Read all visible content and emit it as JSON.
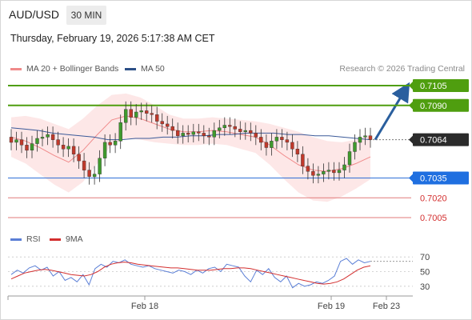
{
  "header": {
    "symbol": "AUD/USD",
    "timeframe": "30 MIN"
  },
  "timestamp": "Thursday, February 19, 2026 5:17:38 AM CET",
  "legend": {
    "bollinger": "MA 20 + Bollinger Bands",
    "ma50": "MA 50",
    "credit": "Research © 2026 Trading Central"
  },
  "indicator_legend": {
    "rsi": "RSI",
    "ma": "9MA"
  },
  "colors": {
    "resistance": "#4f9e0f",
    "support": "#2f6fd6",
    "pivot_line": "#e25c5c",
    "current": "#333333",
    "arrow": "#2a5f9e",
    "bull": "#3f9a2d",
    "bear": "#c0392b"
  },
  "chart_data": [
    {
      "type": "candlestick",
      "title": "AUD/USD",
      "timeframe": "30 MIN",
      "y_levels": [
        {
          "label": "0.7105",
          "value": 0.7105,
          "kind": "resistance"
        },
        {
          "label": "0.7090",
          "value": 0.709,
          "kind": "resistance"
        },
        {
          "label": "0.7064",
          "value": 0.7064,
          "kind": "current"
        },
        {
          "label": "0.7035",
          "value": 0.7035,
          "kind": "support"
        },
        {
          "label": "0.7020",
          "value": 0.702,
          "kind": "pivot"
        },
        {
          "label": "0.7005",
          "value": 0.7005,
          "kind": "pivot"
        }
      ],
      "x_labels": [
        "Feb 18",
        "Feb 19",
        "Feb 23"
      ],
      "close_series": [
        0.7062,
        0.7064,
        0.706,
        0.7056,
        0.7061,
        0.7065,
        0.7066,
        0.7068,
        0.7064,
        0.706,
        0.7057,
        0.7059,
        0.7053,
        0.7048,
        0.7041,
        0.7036,
        0.7038,
        0.705,
        0.7062,
        0.706,
        0.7063,
        0.7077,
        0.7087,
        0.7081,
        0.7085,
        0.7086,
        0.7084,
        0.7083,
        0.7078,
        0.7076,
        0.7074,
        0.7071,
        0.7067,
        0.7069,
        0.7068,
        0.707,
        0.7069,
        0.7067,
        0.7066,
        0.7071,
        0.7073,
        0.7075,
        0.7074,
        0.7072,
        0.707,
        0.7071,
        0.7069,
        0.7066,
        0.7062,
        0.7058,
        0.7063,
        0.7066,
        0.7064,
        0.7062,
        0.7057,
        0.7053,
        0.7044,
        0.704,
        0.7037,
        0.7038,
        0.704,
        0.7041,
        0.7039,
        0.7041,
        0.7045,
        0.7055,
        0.7062,
        0.7066,
        0.7067,
        0.7064
      ],
      "ma50_series": [
        0.7073,
        0.7072,
        0.7071,
        0.7069,
        0.7068,
        0.7067,
        0.7066,
        0.7064,
        0.7064,
        0.7065,
        0.7065,
        0.7066,
        0.7066,
        0.7067,
        0.7067,
        0.7068,
        0.7068,
        0.7069,
        0.7069,
        0.7069,
        0.7068,
        0.7068,
        0.7067,
        0.7067,
        0.7066,
        0.7065,
        0.7064
      ],
      "bollinger_mid_series": [
        0.7066,
        0.7063,
        0.7058,
        0.7052,
        0.7047,
        0.7056,
        0.7068,
        0.7079,
        0.7082,
        0.708,
        0.7076,
        0.7072,
        0.707,
        0.707,
        0.7071,
        0.707,
        0.7068,
        0.7066,
        0.706,
        0.7052,
        0.7045,
        0.7041,
        0.704,
        0.7042,
        0.7046,
        0.7051
      ],
      "bollinger_upper_series": [
        0.7081,
        0.7082,
        0.708,
        0.7076,
        0.7072,
        0.708,
        0.709,
        0.7098,
        0.7099,
        0.7096,
        0.709,
        0.7083,
        0.708,
        0.708,
        0.7081,
        0.708,
        0.7079,
        0.7078,
        0.7076,
        0.7073,
        0.707,
        0.7066,
        0.7063,
        0.7062,
        0.7064,
        0.7068
      ],
      "bollinger_lower_series": [
        0.7051,
        0.7046,
        0.7038,
        0.703,
        0.7024,
        0.7032,
        0.7046,
        0.706,
        0.7065,
        0.7064,
        0.7062,
        0.7061,
        0.706,
        0.706,
        0.7061,
        0.706,
        0.7057,
        0.7054,
        0.7045,
        0.7034,
        0.7024,
        0.7018,
        0.7017,
        0.7021,
        0.7027,
        0.7034
      ],
      "projection": {
        "from": 0.7064,
        "to": 0.7105
      }
    },
    {
      "type": "line",
      "title": "RSI",
      "y_ticks": [
        70,
        50,
        30
      ],
      "ylim": [
        20,
        80
      ],
      "x_labels": [
        "Feb 18",
        "Feb 19",
        "Feb 23"
      ],
      "series": [
        {
          "name": "RSI",
          "color": "#5b7fd6",
          "values": [
            46,
            52,
            48,
            55,
            58,
            52,
            56,
            44,
            50,
            38,
            42,
            36,
            46,
            32,
            54,
            60,
            56,
            64,
            62,
            66,
            60,
            58,
            56,
            58,
            54,
            52,
            50,
            48,
            52,
            50,
            46,
            52,
            48,
            54,
            56,
            50,
            60,
            58,
            56,
            44,
            36,
            52,
            46,
            54,
            42,
            36,
            44,
            28,
            34,
            30,
            32,
            36,
            34,
            38,
            44,
            64,
            68,
            60,
            66,
            62,
            64
          ]
        },
        {
          "name": "9MA",
          "color": "#d32f2f",
          "values": [
            40,
            44,
            48,
            50,
            52,
            53,
            52,
            50,
            48,
            46,
            45,
            44,
            46,
            50,
            56,
            60,
            62,
            63,
            62,
            60,
            59,
            58,
            57,
            56,
            55,
            55,
            54,
            53,
            52,
            52,
            52,
            53,
            54,
            54,
            55,
            55,
            54,
            52,
            50,
            48,
            46,
            44,
            42,
            40,
            38,
            36,
            34,
            33,
            34,
            36,
            40,
            46,
            52,
            56,
            58
          ]
        }
      ]
    }
  ]
}
